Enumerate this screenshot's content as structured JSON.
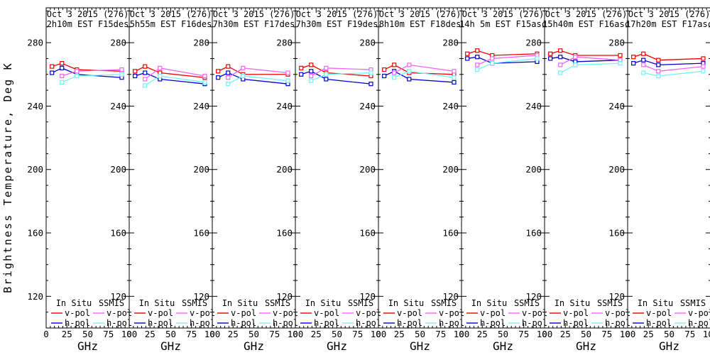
{
  "figure": {
    "description": "Eight-panel line chart comparing In Situ and SSMIS brightness temperatures vs frequency for Oct 3 2015"
  },
  "axes": {
    "y_label": "Brightness Temperature, Deg K",
    "x_label": "GHz",
    "xlim": [
      0,
      100
    ],
    "ylim": [
      100,
      302
    ],
    "xticks": [
      0,
      25,
      50,
      75,
      100
    ],
    "yticks": [
      120,
      160,
      200,
      240,
      280
    ],
    "x_minor_step": 5,
    "y_minor_step": 10,
    "grid": false
  },
  "legend": {
    "group1_label": "In Situ",
    "group2_label": "SSMIS",
    "v_pol_label": "v-pol",
    "h_pol_label": "h-pol",
    "position": "bottom-inside"
  },
  "colors": {
    "in_situ_v": "#ee0000",
    "in_situ_h": "#0000cc",
    "ssmis_v": "#f566f5",
    "ssmis_h": "#6ef5f5",
    "frame": "#000000"
  },
  "chart_data": [
    {
      "type": "line",
      "title": "Oct 3 2015 (276)",
      "subtitle": "2h10m EST F15des",
      "series": [
        {
          "name": "In Situ v-pol",
          "color_key": "in_situ_v",
          "x": [
            7,
            19,
            37,
            91
          ],
          "values": [
            265,
            267,
            263,
            262
          ]
        },
        {
          "name": "In Situ h-pol",
          "color_key": "in_situ_h",
          "x": [
            7,
            19,
            37,
            91
          ],
          "values": [
            261,
            264,
            260,
            258
          ]
        },
        {
          "name": "SSMIS v-pol",
          "color_key": "ssmis_v",
          "x": [
            19,
            37,
            91
          ],
          "values": [
            259,
            262,
            263
          ]
        },
        {
          "name": "SSMIS h-pol",
          "color_key": "ssmis_h",
          "x": [
            19,
            37,
            91
          ],
          "values": [
            255,
            259,
            260
          ]
        }
      ]
    },
    {
      "type": "line",
      "title": "Oct 3 2015 (276)",
      "subtitle": "5h55m EST F16des",
      "series": [
        {
          "name": "In Situ v-pol",
          "color_key": "in_situ_v",
          "x": [
            7,
            19,
            37,
            91
          ],
          "values": [
            262,
            265,
            261,
            258
          ]
        },
        {
          "name": "In Situ h-pol",
          "color_key": "in_situ_h",
          "x": [
            7,
            19,
            37,
            91
          ],
          "values": [
            259,
            261,
            257,
            254
          ]
        },
        {
          "name": "SSMIS v-pol",
          "color_key": "ssmis_v",
          "x": [
            19,
            37,
            91
          ],
          "values": [
            257,
            264,
            259
          ]
        },
        {
          "name": "SSMIS h-pol",
          "color_key": "ssmis_h",
          "x": [
            19,
            37,
            91
          ],
          "values": [
            253,
            259,
            255
          ]
        }
      ]
    },
    {
      "type": "line",
      "title": "Oct 3 2015 (276)",
      "subtitle": "7h30m EST F17des",
      "series": [
        {
          "name": "In Situ v-pol",
          "color_key": "in_situ_v",
          "x": [
            7,
            19,
            37,
            91
          ],
          "values": [
            262,
            265,
            260,
            260
          ]
        },
        {
          "name": "In Situ h-pol",
          "color_key": "in_situ_h",
          "x": [
            7,
            19,
            37,
            91
          ],
          "values": [
            258,
            261,
            257,
            254
          ]
        },
        {
          "name": "SSMIS v-pol",
          "color_key": "ssmis_v",
          "x": [
            19,
            37,
            91
          ],
          "values": [
            258,
            264,
            261
          ]
        },
        {
          "name": "SSMIS h-pol",
          "color_key": "ssmis_h",
          "x": [
            19,
            37,
            91
          ],
          "values": [
            254,
            259,
            256
          ]
        }
      ]
    },
    {
      "type": "line",
      "title": "Oct 3 2015 (276)",
      "subtitle": "7h30m EST F19des",
      "series": [
        {
          "name": "In Situ v-pol",
          "color_key": "in_situ_v",
          "x": [
            7,
            19,
            37,
            91
          ],
          "values": [
            264,
            266,
            261,
            259
          ]
        },
        {
          "name": "In Situ h-pol",
          "color_key": "in_situ_h",
          "x": [
            7,
            19,
            37,
            91
          ],
          "values": [
            260,
            262,
            257,
            254
          ]
        },
        {
          "name": "SSMIS v-pol",
          "color_key": "ssmis_v",
          "x": [
            19,
            37,
            91
          ],
          "values": [
            259,
            264,
            263
          ]
        },
        {
          "name": "SSMIS h-pol",
          "color_key": "ssmis_h",
          "x": [
            19,
            37,
            91
          ],
          "values": [
            256,
            260,
            261
          ]
        }
      ]
    },
    {
      "type": "line",
      "title": "Oct 3 2015 (276)",
      "subtitle": "8h10m EST F18des",
      "series": [
        {
          "name": "In Situ v-pol",
          "color_key": "in_situ_v",
          "x": [
            7,
            19,
            37,
            91
          ],
          "values": [
            263,
            266,
            261,
            260
          ]
        },
        {
          "name": "In Situ h-pol",
          "color_key": "in_situ_h",
          "x": [
            7,
            19,
            37,
            91
          ],
          "values": [
            259,
            262,
            257,
            255
          ]
        },
        {
          "name": "SSMIS v-pol",
          "color_key": "ssmis_v",
          "x": [
            19,
            37,
            91
          ],
          "values": [
            261,
            266,
            262
          ]
        },
        {
          "name": "SSMIS h-pol",
          "color_key": "ssmis_h",
          "x": [
            19,
            37,
            91
          ],
          "values": [
            258,
            262,
            258
          ]
        }
      ]
    },
    {
      "type": "line",
      "title": "Oct 3 2015 (276)",
      "subtitle": "14h 5m EST F15asc",
      "series": [
        {
          "name": "In Situ v-pol",
          "color_key": "in_situ_v",
          "x": [
            7,
            19,
            37,
            91
          ],
          "values": [
            273,
            275,
            272,
            273
          ]
        },
        {
          "name": "In Situ h-pol",
          "color_key": "in_situ_h",
          "x": [
            7,
            19,
            37,
            91
          ],
          "values": [
            270,
            271,
            267,
            268
          ]
        },
        {
          "name": "SSMIS v-pol",
          "color_key": "ssmis_v",
          "x": [
            19,
            37,
            91
          ],
          "values": [
            266,
            270,
            272
          ]
        },
        {
          "name": "SSMIS h-pol",
          "color_key": "ssmis_h",
          "x": [
            19,
            37,
            91
          ],
          "values": [
            263,
            267,
            270
          ]
        }
      ]
    },
    {
      "type": "line",
      "title": "Oct 3 2015 (276)",
      "subtitle": "15h40m EST F16asc",
      "series": [
        {
          "name": "In Situ v-pol",
          "color_key": "in_situ_v",
          "x": [
            7,
            19,
            37,
            91
          ],
          "values": [
            273,
            275,
            272,
            272
          ]
        },
        {
          "name": "In Situ h-pol",
          "color_key": "in_situ_h",
          "x": [
            7,
            19,
            37,
            91
          ],
          "values": [
            270,
            271,
            268,
            269
          ]
        },
        {
          "name": "SSMIS v-pol",
          "color_key": "ssmis_v",
          "x": [
            19,
            37,
            91
          ],
          "values": [
            266,
            271,
            269
          ]
        },
        {
          "name": "SSMIS h-pol",
          "color_key": "ssmis_h",
          "x": [
            19,
            37,
            91
          ],
          "values": [
            261,
            266,
            267
          ]
        }
      ]
    },
    {
      "type": "line",
      "title": "Oct 3 2015 (276)",
      "subtitle": "17h20m EST F17asc",
      "series": [
        {
          "name": "In Situ v-pol",
          "color_key": "in_situ_v",
          "x": [
            7,
            19,
            37,
            91
          ],
          "values": [
            271,
            273,
            269,
            270
          ]
        },
        {
          "name": "In Situ h-pol",
          "color_key": "in_situ_h",
          "x": [
            7,
            19,
            37,
            91
          ],
          "values": [
            267,
            269,
            266,
            267
          ]
        },
        {
          "name": "SSMIS v-pol",
          "color_key": "ssmis_v",
          "x": [
            19,
            37,
            91
          ],
          "values": [
            266,
            262,
            265
          ]
        },
        {
          "name": "SSMIS h-pol",
          "color_key": "ssmis_h",
          "x": [
            19,
            37,
            91
          ],
          "values": [
            261,
            259,
            262
          ]
        }
      ]
    }
  ]
}
